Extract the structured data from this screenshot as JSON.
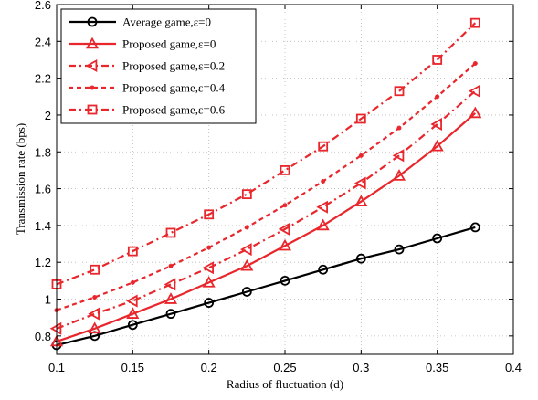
{
  "chart_data": {
    "type": "line",
    "xlabel": "Radius of fluctuation (d)",
    "ylabel": "Transmission rate (bps)",
    "xlim": [
      0.1,
      0.4
    ],
    "ylim": [
      0.7,
      2.6
    ],
    "x_ticks": [
      "0.1",
      "0.15",
      "0.2",
      "0.25",
      "0.3",
      "0.35",
      "0.4"
    ],
    "y_ticks": [
      "0.8",
      "1",
      "1.2",
      "1.4",
      "1.6",
      "1.8",
      "2",
      "2.2",
      "2.4",
      "2.6"
    ],
    "x_tick_values": [
      0.1,
      0.15,
      0.2,
      0.25,
      0.3,
      0.35,
      0.4
    ],
    "y_tick_values": [
      0.8,
      1.0,
      1.2,
      1.4,
      1.6,
      1.8,
      2.0,
      2.2,
      2.4,
      2.6
    ],
    "grid": true,
    "legend_position": "top-left",
    "x": [
      0.1,
      0.125,
      0.15,
      0.175,
      0.2,
      0.225,
      0.25,
      0.275,
      0.3,
      0.325,
      0.35,
      0.375
    ],
    "series": [
      {
        "name": "Average game,ε=0",
        "color": "#000000",
        "line_style": "solid",
        "marker": "circle",
        "values": [
          0.75,
          0.8,
          0.86,
          0.92,
          0.98,
          1.04,
          1.1,
          1.16,
          1.22,
          1.27,
          1.33,
          1.39
        ]
      },
      {
        "name": "Proposed game,ε=0",
        "color": "#e8262c",
        "line_style": "solid",
        "marker": "triangle-up",
        "values": [
          0.77,
          0.84,
          0.92,
          1.0,
          1.09,
          1.18,
          1.29,
          1.4,
          1.53,
          1.67,
          1.83,
          2.01
        ]
      },
      {
        "name": "Proposed game,ε=0.2",
        "color": "#e8262c",
        "line_style": "dashdot",
        "marker": "triangle-left",
        "values": [
          0.84,
          0.92,
          0.99,
          1.08,
          1.17,
          1.27,
          1.38,
          1.5,
          1.63,
          1.78,
          1.95,
          2.13
        ]
      },
      {
        "name": "Proposed game,ε=0.4",
        "color": "#e8262c",
        "line_style": "dashed",
        "marker": "asterisk",
        "values": [
          0.94,
          1.01,
          1.09,
          1.18,
          1.28,
          1.39,
          1.51,
          1.64,
          1.78,
          1.93,
          2.1,
          2.28
        ]
      },
      {
        "name": "Proposed game,ε=0.6",
        "color": "#e8262c",
        "line_style": "dashdot",
        "marker": "square",
        "values": [
          1.08,
          1.16,
          1.26,
          1.36,
          1.46,
          1.57,
          1.7,
          1.83,
          1.98,
          2.13,
          2.3,
          2.5
        ]
      }
    ]
  }
}
